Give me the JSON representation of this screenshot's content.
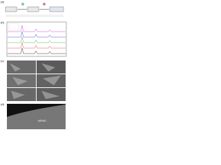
{
  "panels": [
    {
      "label": "(a)"
    },
    {
      "label": "(b)"
    },
    {
      "label": "(c)"
    },
    {
      "label": "(d)"
    }
  ],
  "tem": {
    "label": "NFMO"
  }
}
